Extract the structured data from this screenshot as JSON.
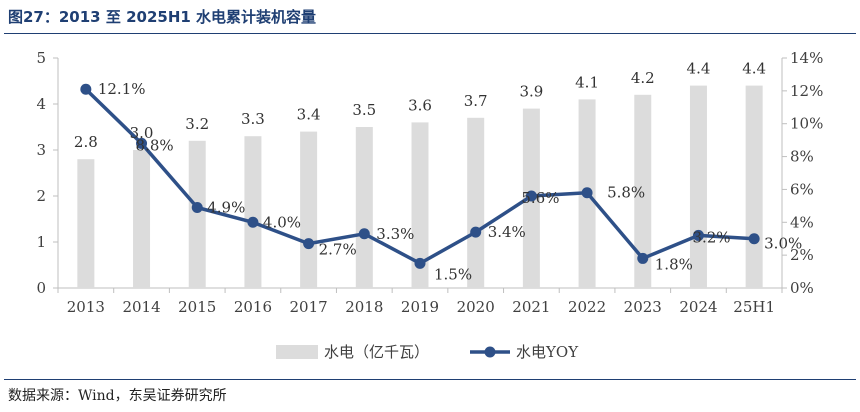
{
  "title": "图27：2013 至 2025H1 水电累计装机容量",
  "source": "数据来源：Wind，东吴证券研究所",
  "colors": {
    "bar": "#dcdcdc",
    "line": "#2e5088",
    "axis": "#bfbfbf",
    "text": "#404040",
    "title": "#1f3f73"
  },
  "chart_data": {
    "type": "bar",
    "categories": [
      "2013",
      "2014",
      "2015",
      "2016",
      "2017",
      "2018",
      "2019",
      "2020",
      "2021",
      "2022",
      "2023",
      "2024",
      "25H1"
    ],
    "series": [
      {
        "name": "水电（亿千瓦）",
        "type": "bar",
        "axis": "left",
        "values": [
          2.8,
          3.0,
          3.2,
          3.3,
          3.4,
          3.5,
          3.6,
          3.7,
          3.9,
          4.1,
          4.2,
          4.4,
          4.4
        ],
        "labels": [
          "2.8",
          "3.0",
          "3.2",
          "3.3",
          "3.4",
          "3.5",
          "3.6",
          "3.7",
          "3.9",
          "4.1",
          "4.2",
          "4.4",
          "4.4"
        ]
      },
      {
        "name": "水电YOY",
        "type": "line",
        "axis": "right",
        "values": [
          12.1,
          8.8,
          4.9,
          4.0,
          2.7,
          3.3,
          1.5,
          3.4,
          5.6,
          5.8,
          1.8,
          3.2,
          3.0
        ],
        "labels": [
          "12.1%",
          "8.8%",
          "4.9%",
          "4.0%",
          "2.7%",
          "3.3%",
          "1.5%",
          "3.4%",
          "5.6%",
          "5.8%",
          "1.8%",
          "3.2%",
          "3.0%"
        ]
      }
    ],
    "y_left": {
      "min": 0,
      "max": 5,
      "ticks": [
        "0",
        "1",
        "2",
        "3",
        "4",
        "5"
      ]
    },
    "y_right": {
      "min": 0,
      "max": 14,
      "ticks": [
        "0%",
        "2%",
        "4%",
        "6%",
        "8%",
        "10%",
        "12%",
        "14%"
      ]
    },
    "legend_position": "bottom",
    "grid": false
  }
}
